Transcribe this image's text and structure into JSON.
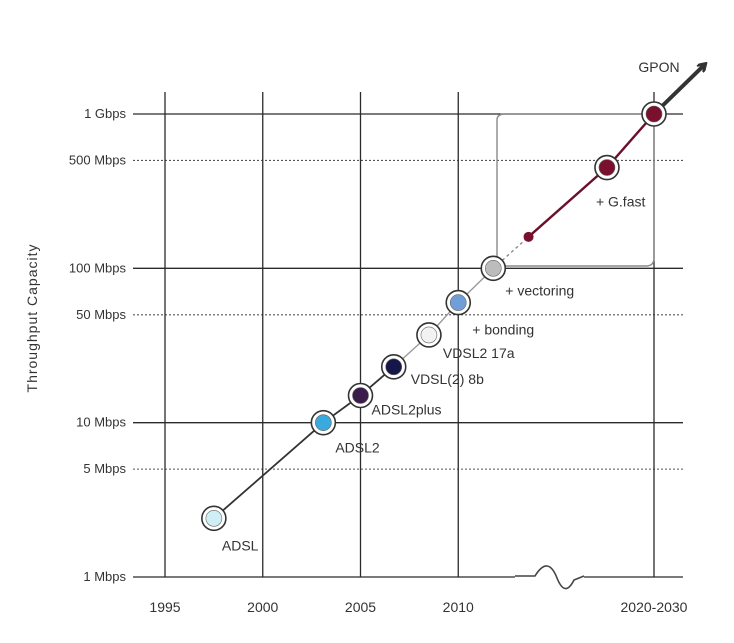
{
  "chart_data": {
    "type": "line",
    "scale": "log",
    "ylabel": "Throughput Capacity",
    "yticks": [
      {
        "label": "1 Gbps",
        "value": 1000,
        "style": "solid"
      },
      {
        "label": "500 Mbps",
        "value": 500,
        "style": "dotted"
      },
      {
        "label": "100 Mbps",
        "value": 100,
        "style": "solid"
      },
      {
        "label": "50 Mbps",
        "value": 50,
        "style": "dotted"
      },
      {
        "label": "10 Mbps",
        "value": 10,
        "style": "solid"
      },
      {
        "label": "5 Mbps",
        "value": 5,
        "style": "dotted"
      },
      {
        "label": "1 Mbps",
        "value": 1,
        "style": "solid"
      }
    ],
    "xticks": [
      {
        "label": "1995",
        "value": 1995
      },
      {
        "label": "2000",
        "value": 2000
      },
      {
        "label": "2005",
        "value": 2005
      },
      {
        "label": "2010",
        "value": 2010
      },
      {
        "label": "2020-2030",
        "value": 2020
      }
    ],
    "points": [
      {
        "label": "ADSL",
        "year": 1997.5,
        "mbps": 2.4,
        "color": "#cfeff7"
      },
      {
        "label": "ADSL2",
        "year": 2003.1,
        "mbps": 10,
        "color": "#3aa9dd"
      },
      {
        "label": "ADSL2plus",
        "year": 2005,
        "mbps": 15,
        "color": "#3a1d4a"
      },
      {
        "label": "VDSL(2) 8b",
        "year": 2006.7,
        "mbps": 23,
        "color": "#15174a"
      },
      {
        "label": "VDSL2 17a",
        "year": 2008.5,
        "mbps": 37,
        "color": "#f2f2f2"
      },
      {
        "label": "+ bonding",
        "year": 2010,
        "mbps": 60,
        "color": "#6f9fd6"
      },
      {
        "label": "+ vectoring",
        "year": 2011.8,
        "mbps": 100,
        "color": "#bcbcbc"
      },
      {
        "label": "",
        "year": 2013.6,
        "mbps": 160,
        "color": "#7a0f2e",
        "small": true
      },
      {
        "label": "+ G.fast",
        "year": 2017.6,
        "mbps": 450,
        "color": "#7a0f2e"
      },
      {
        "label": "GPON",
        "year": 2020,
        "mbps": 1000,
        "color": "#7a0f2e"
      }
    ],
    "trend_end": {
      "year": 2022.6,
      "mbps": 2100
    },
    "grid": true
  }
}
